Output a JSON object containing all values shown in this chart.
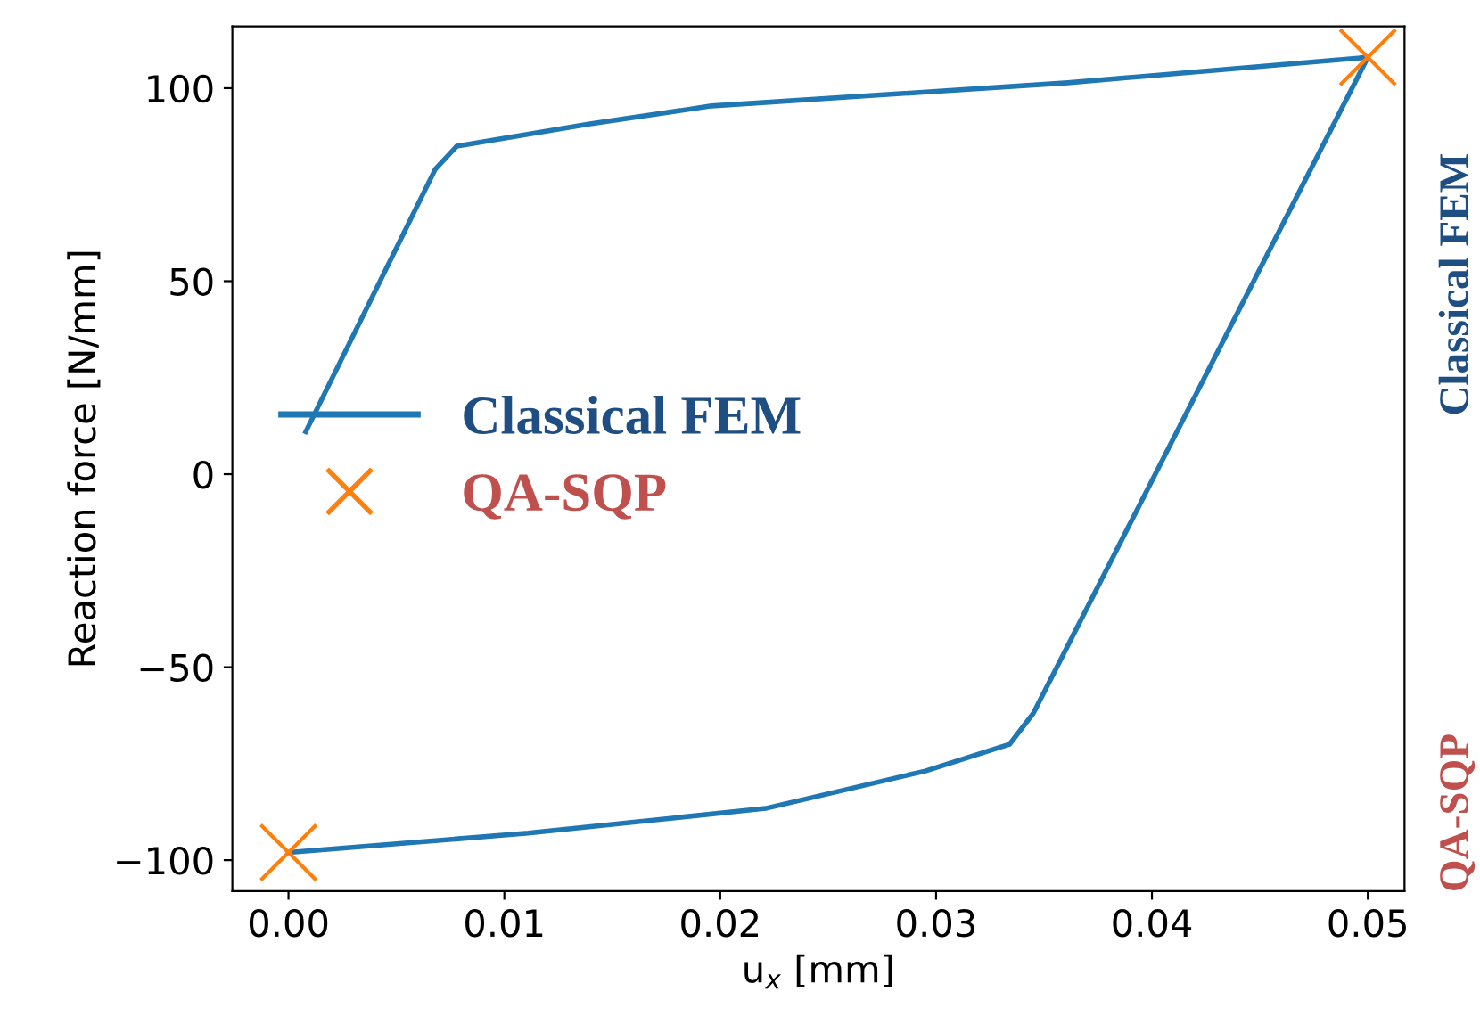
{
  "chart_data": {
    "type": "line",
    "xlabel": "u$_{x}$ [mm]",
    "ylabel": "Reaction force [N/mm]",
    "xlim": [
      -0.0026,
      0.0517
    ],
    "ylim": [
      -108,
      116
    ],
    "xticks": [
      {
        "value": 0,
        "label": "0.00"
      },
      {
        "value": 0.01,
        "label": "0.01"
      },
      {
        "value": 0.02,
        "label": "0.02"
      },
      {
        "value": 0.03,
        "label": "0.03"
      },
      {
        "value": 0.04,
        "label": "0.04"
      },
      {
        "value": 0.05,
        "label": "0.05"
      }
    ],
    "yticks": [
      {
        "value": -100,
        "label": "−100"
      },
      {
        "value": -50,
        "label": "−50"
      },
      0,
      50,
      100
    ],
    "series": [
      {
        "name": "Classical FEM",
        "color": "#1f77b4",
        "line_style": "solid",
        "marker": "none",
        "x": [
          0.0008,
          0.0068,
          0.0078,
          0.0139,
          0.0196,
          0.0361,
          0.05,
          0.0345,
          0.0334,
          0.0295,
          0.0221,
          0.0111,
          0.0
        ],
        "values": [
          11,
          79,
          85,
          90.7,
          95.4,
          101.4,
          108,
          -62,
          -70,
          -76.9,
          -86.6,
          -93,
          -98
        ]
      },
      {
        "name": "QA-SQP",
        "type": "scatter",
        "color": "#ff7f0e",
        "marker": "cross",
        "x": [
          0.0,
          0.05
        ],
        "values": [
          -98,
          108
        ]
      }
    ],
    "legend": "center left",
    "grid": false,
    "annotations": [
      "Classical FEM",
      "QA-SQP"
    ]
  }
}
